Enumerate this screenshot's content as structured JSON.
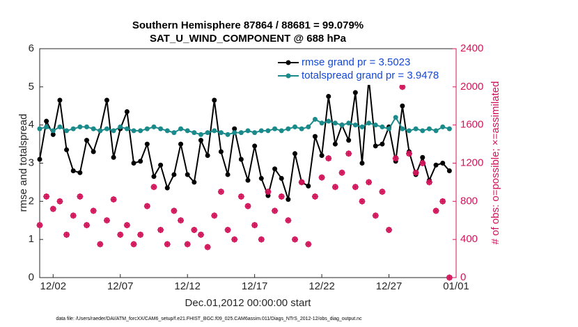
{
  "chart_data": {
    "type": "line",
    "title": "Southern Hemisphere 87864 / 88681 = 99.079%",
    "subtitle": "SAT_U_WIND_COMPONENT @ 688 hPa",
    "xlabel": "Dec.01,2012 00:00:00 start",
    "ylabel": "rmse and totalspread",
    "y2label": "# of obs: o=possible; ×=assimilated",
    "footnote": "data file: /Users/raeder/DAI/ATM_forcXX/CAM6_setup/f.e21.FHIST_BGC.f09_025.CAM6assim.011/Diags_NTrS_2012-12/obs_diag_output.nc",
    "x": [
      0,
      0.5,
      1,
      1.5,
      2,
      2.5,
      3,
      3.5,
      4,
      4.5,
      5,
      5.5,
      6,
      6.5,
      7,
      7.5,
      8,
      8.5,
      9,
      9.5,
      10,
      10.5,
      11,
      11.5,
      12,
      12.5,
      13,
      13.5,
      14,
      14.5,
      15,
      15.5,
      16,
      16.5,
      17,
      17.5,
      18,
      18.5,
      19,
      19.5,
      20,
      20.5,
      21,
      21.5,
      22,
      22.5,
      23,
      23.5,
      24,
      24.5,
      25,
      25.5,
      26,
      26.5,
      27,
      27.5,
      28,
      28.5,
      29,
      29.5,
      30,
      30.5
    ],
    "xlim": [
      0,
      31
    ],
    "xticks": [
      {
        "value": 1,
        "label": "12/02"
      },
      {
        "value": 6,
        "label": "12/07"
      },
      {
        "value": 11,
        "label": "12/12"
      },
      {
        "value": 16,
        "label": "12/17"
      },
      {
        "value": 21,
        "label": "12/22"
      },
      {
        "value": 26,
        "label": "12/27"
      },
      {
        "value": 31,
        "label": "01/01"
      }
    ],
    "ylim": [
      0,
      6
    ],
    "yticks": [
      0,
      1,
      2,
      3,
      4,
      5,
      6
    ],
    "y2lim": [
      0,
      2400
    ],
    "y2ticks": [
      0,
      400,
      800,
      1200,
      1600,
      2000,
      2400
    ],
    "y2color": "#d1145a",
    "legend_text_color": "#1447d6",
    "legend": "upper right",
    "series": [
      {
        "name": "rmse grand pr = 3.5023",
        "color": "#000000",
        "values": [
          3.1,
          4.1,
          3.75,
          4.65,
          3.35,
          2.8,
          2.75,
          3.6,
          3.3,
          3.85,
          4.65,
          3.15,
          3.9,
          4.35,
          3.0,
          3.05,
          3.5,
          2.65,
          2.95,
          2.35,
          2.7,
          3.5,
          2.7,
          2.5,
          3.6,
          3.2,
          4.65,
          3.3,
          2.7,
          3.9,
          3.1,
          2.55,
          3.45,
          2.6,
          2.15,
          2.85,
          2.6,
          2.05,
          3.25,
          2.5,
          2.4,
          3.7,
          3.2,
          4.75,
          3.5,
          4.0,
          3.6,
          4.85,
          3.0,
          5.2,
          3.45,
          3.5,
          3.95,
          3.05,
          4.5,
          3.3,
          2.7,
          3.15,
          2.55,
          2.95,
          3.0,
          2.8
        ]
      },
      {
        "name": "totalspread grand pr = 3.9478",
        "color": "#1a8a8a",
        "values": [
          3.9,
          3.95,
          3.85,
          3.95,
          3.85,
          3.9,
          3.95,
          3.95,
          3.9,
          3.85,
          3.9,
          3.85,
          3.95,
          3.9,
          3.85,
          3.85,
          3.9,
          3.95,
          3.9,
          3.85,
          3.8,
          3.9,
          3.85,
          3.8,
          3.75,
          3.8,
          3.85,
          3.8,
          3.75,
          3.8,
          3.8,
          3.85,
          3.8,
          3.85,
          3.85,
          3.9,
          3.85,
          3.9,
          3.95,
          3.9,
          3.95,
          4.15,
          4.05,
          4.1,
          4.05,
          4.0,
          4.05,
          4.0,
          3.95,
          4.05,
          4.0,
          3.95,
          3.9,
          4.2,
          3.9,
          3.85,
          3.9,
          3.85,
          3.9,
          3.85,
          3.95,
          3.9
        ]
      },
      {
        "color": "#d1145a",
        "axis": "y2",
        "values": [
          550,
          850,
          720,
          800,
          450,
          650,
          850,
          550,
          700,
          350,
          600,
          820,
          450,
          550,
          350,
          450,
          750,
          950,
          500,
          350,
          700,
          600,
          350,
          500,
          450,
          320,
          650,
          900,
          500,
          400,
          850,
          750,
          550,
          400,
          900,
          700,
          850,
          600,
          400,
          1000,
          350,
          850,
          1050,
          1250,
          950,
          1100,
          1300,
          950,
          800,
          1000,
          650,
          900,
          500,
          1250,
          2000,
          1300,
          1100,
          1200,
          1000,
          700,
          800,
          0
        ]
      }
    ]
  }
}
